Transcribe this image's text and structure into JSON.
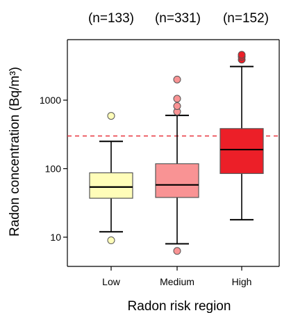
{
  "chart_data": {
    "type": "boxplot",
    "title": "",
    "xlabel": "Radon risk region",
    "ylabel": "Radon concentration (Bq/m³)",
    "yscale": "log",
    "ylim": [
      4,
      6000
    ],
    "yticks": [
      10,
      100,
      1000
    ],
    "ytick_labels": [
      "10",
      "100",
      "1000"
    ],
    "reference_line": {
      "value": 300,
      "style": "dashed",
      "color": "#e8323c"
    },
    "categories": [
      {
        "label": "Low",
        "n_label": "(n=133)",
        "color": "#fffdb9",
        "whisker_low": 12,
        "q1": 37,
        "median": 54,
        "q3": 87,
        "whisker_high": 250,
        "outliers": [
          9,
          590
        ]
      },
      {
        "label": "Medium",
        "n_label": "(n=331)",
        "color": "#f99394",
        "whisker_low": 8,
        "q1": 38,
        "median": 58,
        "q3": 118,
        "whisker_high": 600,
        "outliers": [
          6.3,
          680,
          820,
          1050,
          2000
        ]
      },
      {
        "label": "High",
        "n_label": "(n=152)",
        "color": "#ec1f28",
        "whisker_low": 18,
        "q1": 85,
        "median": 190,
        "q3": 385,
        "whisker_high": 3100,
        "outliers": [
          3900,
          4300,
          4600
        ]
      }
    ]
  }
}
